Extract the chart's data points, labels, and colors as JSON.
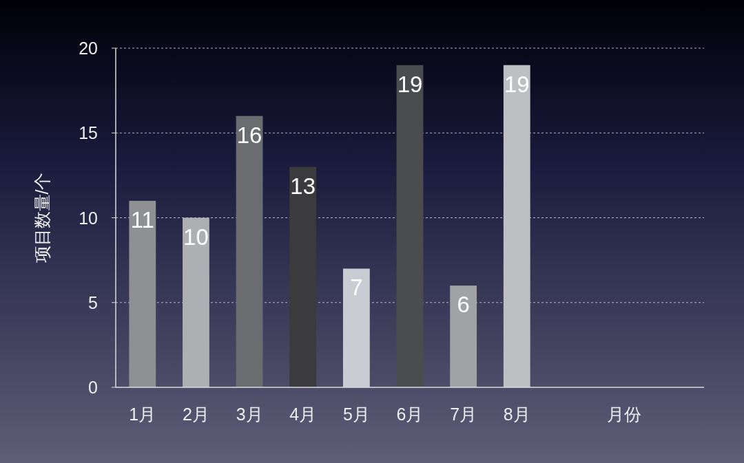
{
  "chart_data": {
    "type": "bar",
    "ylabel": "项目数量/个",
    "xlabel": "月份",
    "categories": [
      "1月",
      "2月",
      "3月",
      "4月",
      "5月",
      "6月",
      "7月",
      "8月",
      null,
      null,
      null
    ],
    "values": [
      11,
      10,
      16,
      13,
      7,
      19,
      6,
      19,
      null,
      null,
      null
    ],
    "colors": [
      "#8e9094",
      "#aeafb3",
      "#6b6c6f",
      "#3b3b3d",
      "#c9ccd3",
      "#4b4c4e",
      "#a0a2a6",
      "#bebfc3",
      null,
      null,
      null
    ],
    "ylim": [
      0,
      20
    ],
    "yticks": [
      0,
      5,
      10,
      15,
      20
    ],
    "grid": "y",
    "data_labels": true
  }
}
